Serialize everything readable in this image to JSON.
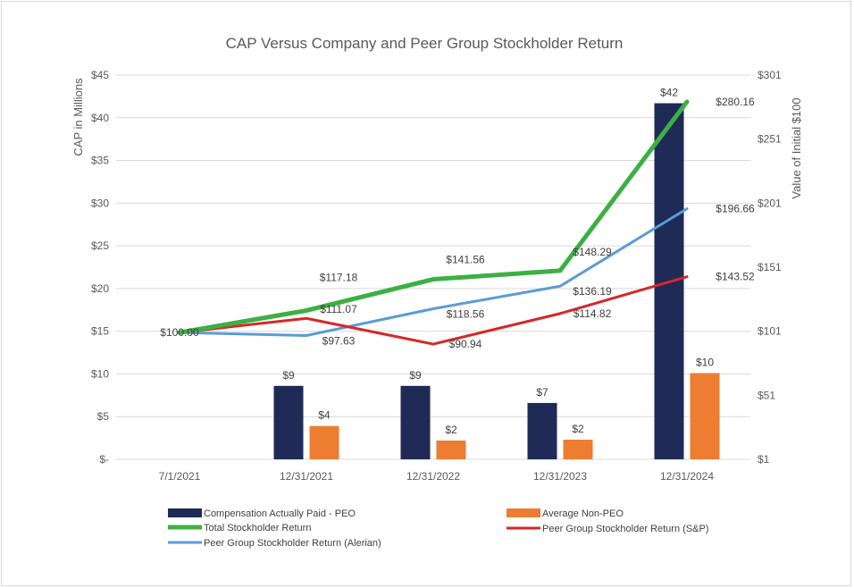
{
  "chart_data": {
    "type": "combo-bar-line",
    "title": "CAP Versus Company and Peer Group Stockholder Return",
    "ylabel_left": "CAP in Millions",
    "ylabel_right": "Value of Initial $100",
    "categories": [
      "7/1/2021",
      "12/31/2021",
      "12/31/2022",
      "12/31/2023",
      "12/31/2024"
    ],
    "left_axis": {
      "min": 0,
      "max": 45,
      "step": 5,
      "tick_labels": [
        "$-",
        "$5",
        "$10",
        "$15",
        "$20",
        "$25",
        "$30",
        "$35",
        "$40",
        "$45"
      ]
    },
    "right_axis": {
      "min": 1,
      "max": 301,
      "step": 50,
      "tick_labels": [
        "$1",
        "$51",
        "$101",
        "$151",
        "$201",
        "$251",
        "$301"
      ]
    },
    "bar_series": [
      {
        "name": "Compensation Actually Paid - PEO",
        "color": "#1f2a57",
        "values": [
          null,
          8.6,
          8.6,
          6.6,
          41.7
        ],
        "labels": [
          "",
          "$9",
          "$9",
          "$7",
          "$42"
        ]
      },
      {
        "name": "Average Non-PEO",
        "color": "#ed7d31",
        "values": [
          null,
          3.9,
          2.2,
          2.3,
          10.1
        ],
        "labels": [
          "",
          "$4",
          "$2",
          "$2",
          "$10"
        ]
      }
    ],
    "line_series": [
      {
        "name": "Total Stockholder Return",
        "color": "#3cb043",
        "values": [
          100.0,
          117.18,
          141.56,
          148.29,
          280.16
        ],
        "labels": [
          "$100.00",
          "$117.18",
          "$141.56",
          "$148.29",
          "$280.16"
        ]
      },
      {
        "name": "Peer Group Stockholder Return (Alerian)",
        "color": "#5b9bd5",
        "values": [
          100.0,
          97.63,
          118.56,
          136.19,
          196.66
        ],
        "labels": [
          "",
          "$97.63",
          "$118.56",
          "$136.19",
          "$196.66"
        ]
      },
      {
        "name": "Peer Group Stockholder Return (S&P)",
        "color": "#d62728",
        "values": [
          100.0,
          111.07,
          90.94,
          114.82,
          143.52
        ],
        "labels": [
          "",
          "$111.07",
          "$90.94",
          "$114.82",
          "$143.52"
        ]
      }
    ],
    "legend": {
      "position": "bottom",
      "entries": [
        {
          "label": "Compensation Actually Paid - PEO",
          "kind": "bar",
          "color": "#1f2a57"
        },
        {
          "label": "Average Non-PEO",
          "kind": "bar",
          "color": "#ed7d31"
        },
        {
          "label": "Total Stockholder Return",
          "kind": "line",
          "color": "#3cb043"
        },
        {
          "label": "Peer Group Stockholder Return (S&P)",
          "kind": "line",
          "color": "#d62728"
        },
        {
          "label": "Peer Group Stockholder Return (Alerian)",
          "kind": "line",
          "color": "#5b9bd5"
        }
      ]
    },
    "grid": true
  }
}
